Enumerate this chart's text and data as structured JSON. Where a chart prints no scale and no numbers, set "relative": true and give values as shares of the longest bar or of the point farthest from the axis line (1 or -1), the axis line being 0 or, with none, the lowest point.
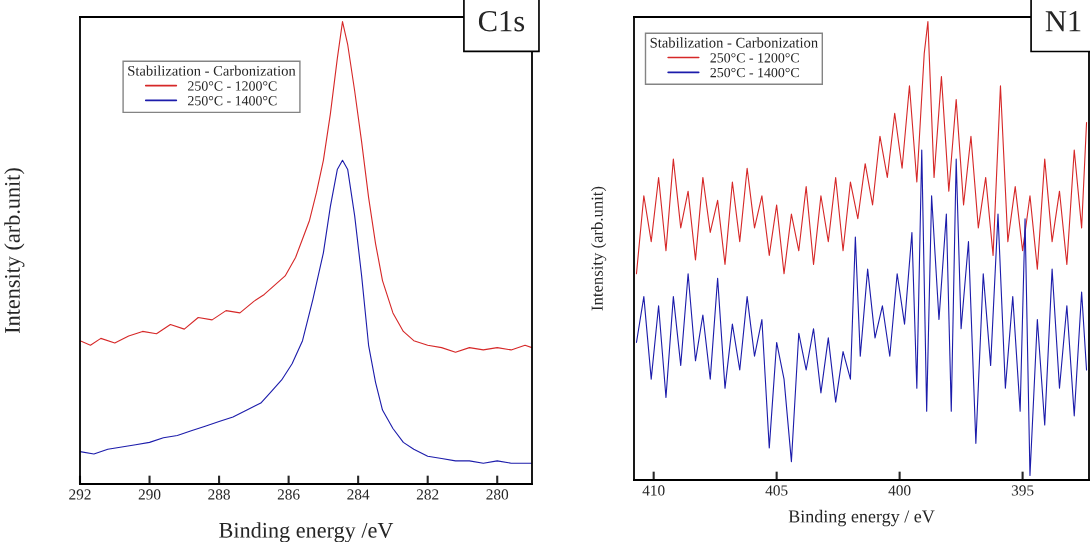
{
  "chart_data": [
    {
      "type": "line",
      "title": "C1s",
      "xlabel": "Binding energy /eV",
      "ylabel": "Intensity (arb.unit)",
      "legend_title": "Stabilization - Carbonization",
      "legend": "top left",
      "relative": true,
      "grid": false,
      "tick_labels": "x",
      "xlim": [
        292,
        279
      ],
      "xticks": [
        292,
        290,
        288,
        286,
        284,
        282,
        280
      ],
      "series": [
        {
          "name": "250°C - 1200°C",
          "color": "#d62828",
          "x": [
            292.0,
            291.7,
            291.4,
            291.0,
            290.6,
            290.2,
            289.8,
            289.4,
            289.0,
            288.6,
            288.2,
            287.8,
            287.4,
            287.0,
            286.7,
            286.4,
            286.1,
            285.8,
            285.6,
            285.4,
            285.2,
            285.0,
            284.8,
            284.6,
            284.45,
            284.3,
            284.1,
            283.9,
            283.7,
            283.5,
            283.3,
            283.0,
            282.7,
            282.4,
            282.0,
            281.6,
            281.2,
            280.8,
            280.4,
            280.0,
            279.6,
            279.2,
            279.0
          ],
          "values": [
            0.31,
            0.3,
            0.315,
            0.305,
            0.32,
            0.33,
            0.325,
            0.345,
            0.335,
            0.36,
            0.355,
            0.375,
            0.37,
            0.395,
            0.41,
            0.43,
            0.45,
            0.49,
            0.53,
            0.57,
            0.63,
            0.7,
            0.8,
            0.92,
            1.0,
            0.95,
            0.85,
            0.74,
            0.62,
            0.52,
            0.44,
            0.37,
            0.33,
            0.31,
            0.3,
            0.295,
            0.285,
            0.295,
            0.29,
            0.295,
            0.29,
            0.3,
            0.295
          ]
        },
        {
          "name": "250°C - 1400°C",
          "color": "#1c1cab",
          "x": [
            292.0,
            291.6,
            291.2,
            290.8,
            290.4,
            290.0,
            289.6,
            289.2,
            288.8,
            288.4,
            288.0,
            287.6,
            287.2,
            286.8,
            286.5,
            286.2,
            285.9,
            285.6,
            285.3,
            285.0,
            284.8,
            284.6,
            284.45,
            284.3,
            284.1,
            283.9,
            283.7,
            283.5,
            283.3,
            283.0,
            282.7,
            282.4,
            282.0,
            281.6,
            281.2,
            280.8,
            280.4,
            280.0,
            279.6,
            279.0
          ],
          "values": [
            0.07,
            0.065,
            0.075,
            0.08,
            0.085,
            0.09,
            0.1,
            0.105,
            0.115,
            0.125,
            0.135,
            0.145,
            0.16,
            0.175,
            0.2,
            0.225,
            0.26,
            0.31,
            0.4,
            0.5,
            0.6,
            0.68,
            0.7,
            0.68,
            0.58,
            0.45,
            0.3,
            0.22,
            0.16,
            0.12,
            0.09,
            0.075,
            0.06,
            0.055,
            0.05,
            0.05,
            0.045,
            0.05,
            0.045,
            0.045
          ]
        }
      ]
    },
    {
      "type": "line",
      "title": "N1",
      "xlabel": "Binding energy / eV",
      "ylabel": "Intensity (arb.unit)",
      "legend_title": "Stabilization - Carbonization",
      "legend": "top left",
      "relative": true,
      "grid": false,
      "tick_labels": "x",
      "xlim": [
        410.8,
        392.3
      ],
      "xticks": [
        410,
        405,
        400,
        395
      ],
      "series": [
        {
          "name": "250°C - 1200°C",
          "color": "#d62828",
          "x": [
            410.7,
            410.4,
            410.1,
            409.8,
            409.5,
            409.2,
            408.9,
            408.6,
            408.3,
            408.0,
            407.7,
            407.4,
            407.1,
            406.8,
            406.5,
            406.2,
            405.9,
            405.6,
            405.3,
            405.0,
            404.7,
            404.4,
            404.1,
            403.8,
            403.5,
            403.2,
            402.9,
            402.6,
            402.3,
            402.0,
            401.7,
            401.4,
            401.1,
            400.8,
            400.5,
            400.2,
            399.9,
            399.6,
            399.3,
            399.0,
            398.85,
            398.6,
            398.3,
            398.0,
            397.7,
            397.4,
            397.1,
            396.8,
            396.5,
            396.2,
            395.9,
            395.6,
            395.3,
            395.0,
            394.7,
            394.4,
            394.1,
            393.8,
            393.5,
            393.2,
            392.9,
            392.6,
            392.4
          ],
          "values": [
            0.45,
            0.62,
            0.52,
            0.66,
            0.5,
            0.7,
            0.55,
            0.63,
            0.48,
            0.66,
            0.54,
            0.61,
            0.47,
            0.65,
            0.52,
            0.68,
            0.55,
            0.62,
            0.49,
            0.6,
            0.45,
            0.58,
            0.5,
            0.64,
            0.47,
            0.62,
            0.52,
            0.66,
            0.5,
            0.65,
            0.57,
            0.69,
            0.6,
            0.75,
            0.66,
            0.8,
            0.68,
            0.86,
            0.65,
            0.93,
            1.0,
            0.66,
            0.88,
            0.63,
            0.83,
            0.6,
            0.75,
            0.55,
            0.66,
            0.49,
            0.86,
            0.52,
            0.64,
            0.5,
            0.62,
            0.46,
            0.7,
            0.52,
            0.63,
            0.47,
            0.72,
            0.55,
            0.78
          ]
        },
        {
          "name": "250°C - 1400°C",
          "color": "#1c1cab",
          "x": [
            410.7,
            410.4,
            410.1,
            409.8,
            409.5,
            409.2,
            408.9,
            408.6,
            408.3,
            408.0,
            407.7,
            407.4,
            407.1,
            406.8,
            406.5,
            406.2,
            405.9,
            405.6,
            405.3,
            405.0,
            404.7,
            404.4,
            404.1,
            403.8,
            403.5,
            403.2,
            402.9,
            402.6,
            402.3,
            402.0,
            401.8,
            401.6,
            401.3,
            401.0,
            400.7,
            400.4,
            400.1,
            399.8,
            399.5,
            399.3,
            399.1,
            398.9,
            398.7,
            398.4,
            398.1,
            397.9,
            397.7,
            397.5,
            397.2,
            396.9,
            396.6,
            396.3,
            396.0,
            395.7,
            395.4,
            395.1,
            394.9,
            394.7,
            394.4,
            394.1,
            393.8,
            393.5,
            393.2,
            392.9,
            392.6,
            392.4
          ],
          "values": [
            0.3,
            0.4,
            0.22,
            0.38,
            0.18,
            0.4,
            0.25,
            0.45,
            0.26,
            0.36,
            0.22,
            0.44,
            0.2,
            0.34,
            0.24,
            0.4,
            0.27,
            0.35,
            0.07,
            0.3,
            0.22,
            0.04,
            0.32,
            0.24,
            0.33,
            0.19,
            0.31,
            0.17,
            0.28,
            0.22,
            0.53,
            0.27,
            0.46,
            0.31,
            0.38,
            0.27,
            0.45,
            0.34,
            0.54,
            0.2,
            0.72,
            0.15,
            0.62,
            0.35,
            0.58,
            0.15,
            0.7,
            0.33,
            0.52,
            0.08,
            0.45,
            0.25,
            0.58,
            0.2,
            0.4,
            0.15,
            0.57,
            0.01,
            0.35,
            0.12,
            0.46,
            0.2,
            0.38,
            0.14,
            0.41,
            0.24
          ]
        }
      ]
    }
  ]
}
